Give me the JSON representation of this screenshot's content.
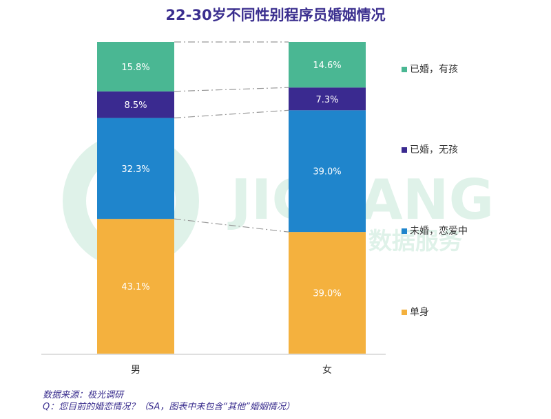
{
  "title": "22-30岁不同性别程序员婚姻情况",
  "colors": {
    "married_kids": "#4ab793",
    "married_no_kids": "#3a2a90",
    "unmarried_dating": "#1f85cc",
    "single": "#f4b13e",
    "title": "#3b2f8f",
    "watermark": "#d7efe4"
  },
  "watermark": {
    "brand": "JIGUANG",
    "subtitle": "极光 数据服务"
  },
  "chart_data": {
    "type": "bar",
    "stacked": true,
    "categories": [
      "男",
      "女"
    ],
    "series": [
      {
        "name": "单身",
        "values": [
          43.1,
          39.0
        ],
        "labels": [
          "43.1%",
          "39.0%"
        ],
        "color": "#f4b13e"
      },
      {
        "name": "未婚，恋爱中",
        "values": [
          32.3,
          39.0
        ],
        "labels": [
          "32.3%",
          "39.0%"
        ],
        "color": "#1f85cc"
      },
      {
        "name": "已婚，无孩",
        "values": [
          8.5,
          7.3
        ],
        "labels": [
          "8.5%",
          "7.3%"
        ],
        "color": "#3a2a90"
      },
      {
        "name": "已婚，有孩",
        "values": [
          15.8,
          14.6
        ],
        "labels": [
          "15.8%",
          "14.6%"
        ],
        "color": "#4ab793"
      }
    ],
    "legend": [
      "已婚，有孩",
      "已婚，无孩",
      "未婚，恋爱中",
      "单身"
    ],
    "legend_position": "right",
    "ylim": [
      0,
      100
    ]
  },
  "footer": {
    "source": "数据来源：极光调研",
    "question": "Q：您目前的婚恋情况？（SA，图表中未包含“其他”婚姻情况）"
  }
}
